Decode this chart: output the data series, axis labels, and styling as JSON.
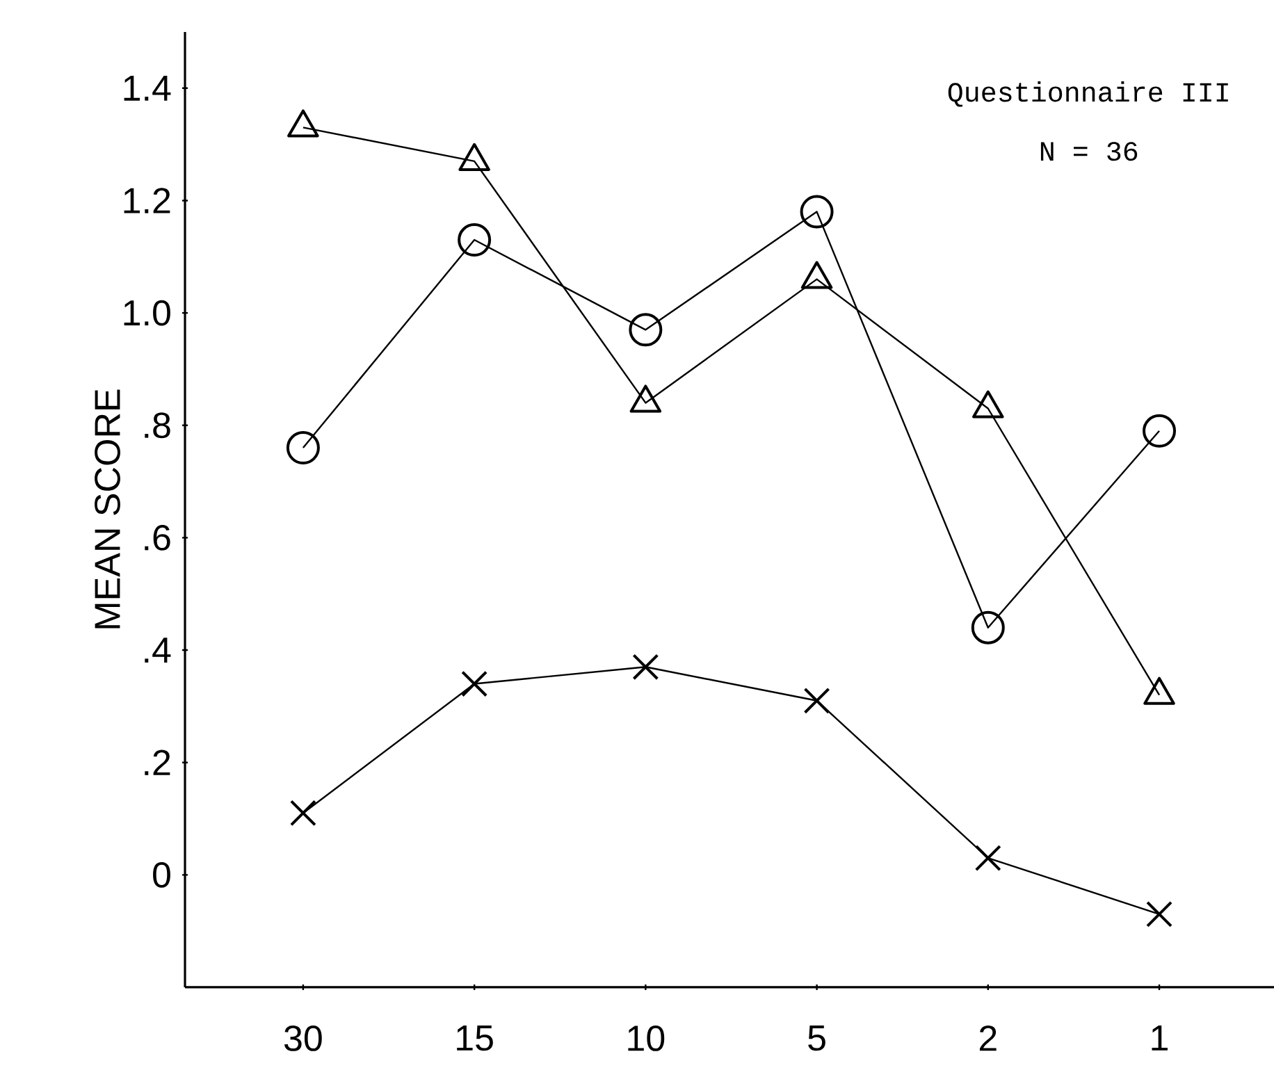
{
  "chart_data": {
    "type": "line",
    "ylabel": "MEAN SCORE",
    "annotations": [
      "Questionnaire III",
      "N = 36"
    ],
    "categories": [
      "30",
      "15",
      "10",
      "5",
      "2",
      "1"
    ],
    "series": [
      {
        "color": "#000000",
        "marker": "triangle",
        "values": [
          1.33,
          1.27,
          0.84,
          1.06,
          0.83,
          0.32
        ]
      },
      {
        "color": "#000000",
        "marker": "circle",
        "values": [
          0.76,
          1.13,
          0.97,
          1.18,
          0.44,
          0.79
        ]
      },
      {
        "color": "#000000",
        "marker": "cross",
        "values": [
          0.11,
          0.34,
          0.37,
          0.31,
          0.03,
          -0.07
        ]
      }
    ],
    "ylim": [
      -0.2,
      1.5
    ],
    "yticks": [
      {
        "value": 0,
        "label": "0"
      },
      {
        "value": 0.2,
        "label": ".2"
      },
      {
        "value": 0.4,
        "label": ".4"
      },
      {
        "value": 0.6,
        "label": ".6"
      },
      {
        "value": 0.8,
        "label": ".8"
      },
      {
        "value": 1.0,
        "label": "1.0"
      },
      {
        "value": 1.2,
        "label": "1.2"
      },
      {
        "value": 1.4,
        "label": "1.4"
      }
    ],
    "grid": false,
    "line_style": "solid"
  }
}
